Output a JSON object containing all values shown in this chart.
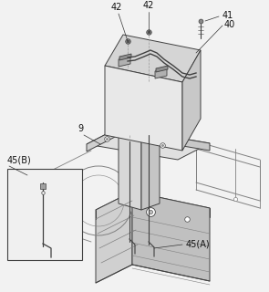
{
  "bg_color": "#f2f2f2",
  "line_color": "#404040",
  "light_line_color": "#808080",
  "dashed_color": "#999999",
  "label_color": "#111111",
  "ann_color": "#333333"
}
